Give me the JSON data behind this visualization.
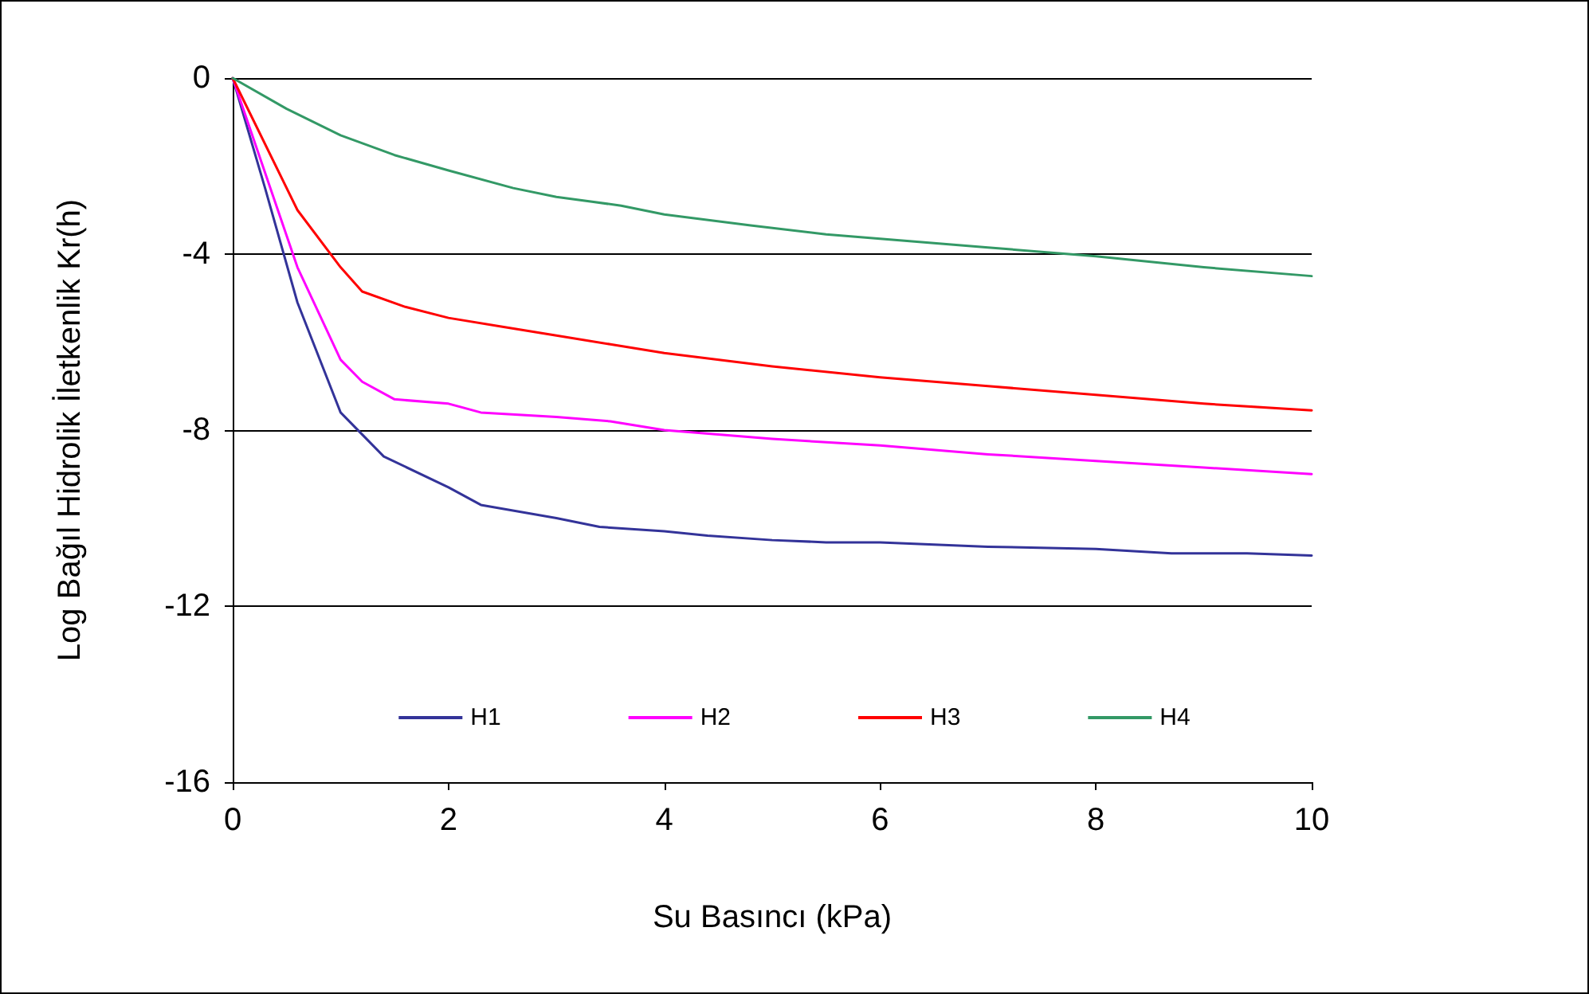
{
  "chart_data": {
    "type": "line",
    "xlabel": "Su Basıncı (kPa)",
    "ylabel": "Log Bağıl Hidrolik İletkenlik Kr(h)",
    "xlim": [
      0,
      10
    ],
    "xticks": [
      0,
      2,
      4,
      6,
      8,
      10
    ],
    "ylim": [
      -16,
      0
    ],
    "yticks": [
      -16,
      -12,
      -8,
      -4,
      0
    ],
    "grid": "y",
    "legend": "bottom",
    "marker": "none",
    "line_style": "solid",
    "series": [
      {
        "name": "H1",
        "color": "#333399",
        "x": [
          0,
          0.3,
          0.6,
          1,
          1.4,
          2,
          2.3,
          3,
          3.4,
          4,
          4.4,
          5,
          5.5,
          6,
          7,
          8,
          8.7,
          9.4,
          10
        ],
        "values": [
          0,
          -2.5,
          -5.1,
          -7.6,
          -8.6,
          -9.3,
          -9.7,
          -10,
          -10.2,
          -10.3,
          -10.4,
          -10.5,
          -10.55,
          -10.55,
          -10.65,
          -10.7,
          -10.8,
          -10.8,
          -10.85
        ]
      },
      {
        "name": "H2",
        "color": "#ff00ff",
        "x": [
          0,
          0.6,
          1,
          1.2,
          1.5,
          2,
          2.3,
          3,
          3.5,
          4,
          5,
          6,
          7,
          8,
          9,
          10
        ],
        "values": [
          0,
          -4.3,
          -6.4,
          -6.9,
          -7.3,
          -7.4,
          -7.6,
          -7.7,
          -7.8,
          -8,
          -8.2,
          -8.35,
          -8.55,
          -8.7,
          -8.85,
          -9
        ]
      },
      {
        "name": "H3",
        "color": "#ff0000",
        "x": [
          0,
          0.6,
          1,
          1.2,
          1.6,
          2,
          2.5,
          3,
          3.5,
          4,
          5,
          6,
          7,
          8,
          9,
          10
        ],
        "values": [
          0,
          -3,
          -4.3,
          -4.85,
          -5.2,
          -5.45,
          -5.65,
          -5.85,
          -6.05,
          -6.25,
          -6.55,
          -6.8,
          -7,
          -7.2,
          -7.4,
          -7.55
        ]
      },
      {
        "name": "H4",
        "color": "#339966",
        "x": [
          0,
          0.5,
          1,
          1.5,
          2,
          2.6,
          3,
          3.6,
          4,
          4.8,
          5.5,
          6,
          7,
          8,
          9,
          10
        ],
        "values": [
          0,
          -0.7,
          -1.3,
          -1.75,
          -2.1,
          -2.5,
          -2.7,
          -2.9,
          -3.1,
          -3.35,
          -3.55,
          -3.65,
          -3.85,
          -4.05,
          -4.3,
          -4.5
        ]
      }
    ]
  }
}
